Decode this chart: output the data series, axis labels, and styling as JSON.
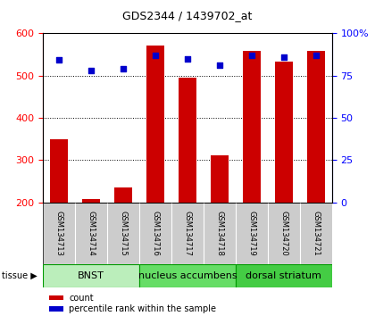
{
  "title": "GDS2344 / 1439702_at",
  "samples": [
    "GSM134713",
    "GSM134714",
    "GSM134715",
    "GSM134716",
    "GSM134717",
    "GSM134718",
    "GSM134719",
    "GSM134720",
    "GSM134721"
  ],
  "counts": [
    350,
    208,
    235,
    570,
    495,
    312,
    558,
    533,
    558
  ],
  "percentiles": [
    84,
    78,
    79,
    87,
    85,
    81,
    87,
    86,
    87
  ],
  "ylim_left": [
    200,
    600
  ],
  "ylim_right": [
    0,
    100
  ],
  "yticks_left": [
    200,
    300,
    400,
    500,
    600
  ],
  "yticks_right": [
    0,
    25,
    50,
    75,
    100
  ],
  "bar_color": "#cc0000",
  "dot_color": "#0000cc",
  "bg_plot": "#ffffff",
  "bg_label": "#cccccc",
  "tissue_groups": [
    {
      "label": "BNST",
      "start": 0,
      "end": 3,
      "color": "#bbeebb"
    },
    {
      "label": "nucleus accumbens",
      "start": 3,
      "end": 6,
      "color": "#66dd66"
    },
    {
      "label": "dorsal striatum",
      "start": 6,
      "end": 9,
      "color": "#44cc44"
    }
  ],
  "tissue_label": "tissue",
  "legend_count": "count",
  "legend_pct": "percentile rank within the sample",
  "title_fontsize": 9,
  "tick_fontsize": 8,
  "sample_fontsize": 6,
  "tissue_fontsize": 8
}
